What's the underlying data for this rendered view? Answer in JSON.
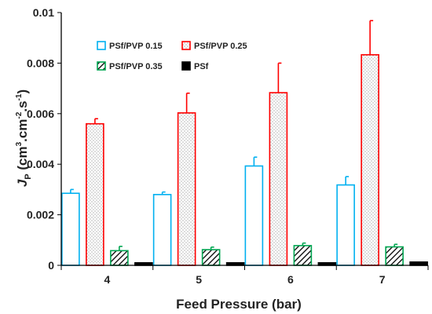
{
  "chart_data": {
    "type": "bar",
    "title": "",
    "xlabel": "Feed Pressure (bar)",
    "ylabel": {
      "main": "J",
      "subscript": "P",
      "unit_open": " (cm",
      "unit_exp1": "3",
      "unit_mid1": ".cm",
      "unit_exp2": "-2",
      "unit_mid2": ".s",
      "unit_exp3": "-1",
      "unit_close": ")"
    },
    "ylim": [
      0,
      0.01
    ],
    "yticks": [
      "0",
      "0.002",
      "0.004",
      "0.006",
      "0.008",
      "0.01"
    ],
    "ytick_values": [
      0,
      0.002,
      0.004,
      0.006,
      0.008,
      0.01
    ],
    "categories": [
      "4",
      "5",
      "6",
      "7"
    ],
    "grid": false,
    "legend_position": "top-left",
    "series": [
      {
        "name": "PSf/PVP 0.15",
        "values": [
          0.00285,
          0.0028,
          0.00393,
          0.00318
        ],
        "errors": [
          0.00015,
          0.0001,
          0.00035,
          0.00033
        ],
        "color": "#00b0f0",
        "fill": "#ffffff",
        "pattern": "none"
      },
      {
        "name": "PSf/PVP 0.25",
        "values": [
          0.0056,
          0.00603,
          0.00683,
          0.00833
        ],
        "errors": [
          0.0002,
          0.00078,
          0.00117,
          0.00135
        ],
        "color": "#ff0000",
        "fill": "#ffffff",
        "pattern": "dots"
      },
      {
        "name": "PSf/PVP 0.35",
        "values": [
          0.00058,
          0.00062,
          0.00078,
          0.00073
        ],
        "errors": [
          0.00017,
          0.0001,
          0.0001,
          0.0001
        ],
        "color": "#00a651",
        "fill": "#ffffff",
        "pattern": "hatch"
      },
      {
        "name": "PSf",
        "values": [
          0.0001,
          0.0001,
          0.0001,
          0.00013
        ],
        "errors": [
          0,
          0,
          0,
          0
        ],
        "color": "#000000",
        "fill": "#000000",
        "pattern": "solid"
      }
    ]
  }
}
